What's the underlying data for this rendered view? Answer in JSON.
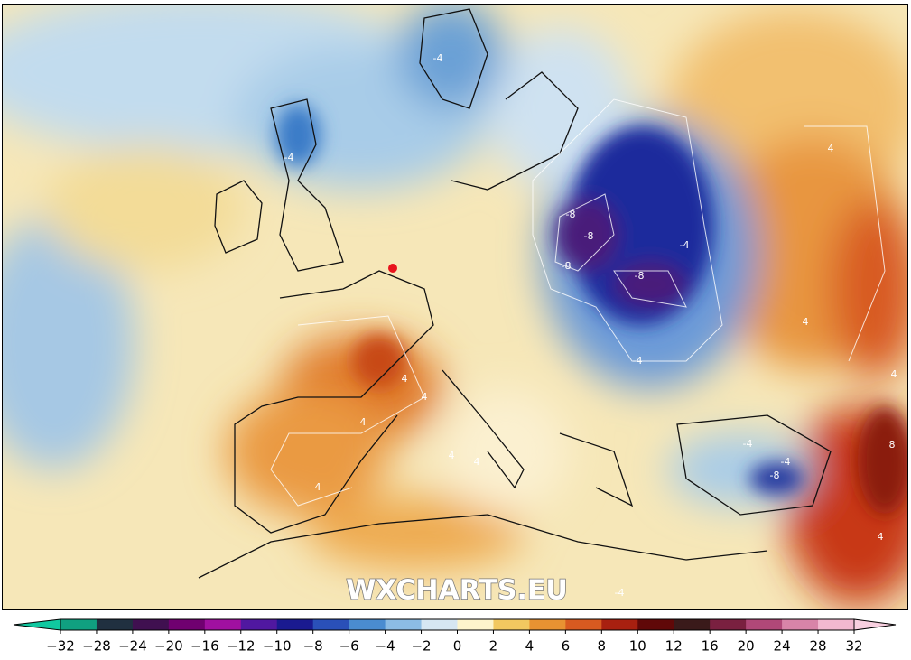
{
  "map": {
    "watermark": "WXCHARTS.EU",
    "contour_labels": [
      "-4",
      "-4",
      "-8",
      "-8",
      "-8",
      "-8",
      "-4",
      "-4",
      "4",
      "4",
      "4",
      "4",
      "4",
      "4",
      "-4",
      "-8",
      "-4",
      "8",
      "-4",
      "4",
      "4",
      "4",
      "4"
    ],
    "marker_color": "#e8141c"
  },
  "colorbar": {
    "ticks": [
      {
        "value": -32,
        "label": "−32"
      },
      {
        "value": -28,
        "label": "−28"
      },
      {
        "value": -24,
        "label": "−24"
      },
      {
        "value": -20,
        "label": "−20"
      },
      {
        "value": -16,
        "label": "−16"
      },
      {
        "value": -12,
        "label": "−12"
      },
      {
        "value": -10,
        "label": "−10"
      },
      {
        "value": -8,
        "label": "−8"
      },
      {
        "value": -6,
        "label": "−6"
      },
      {
        "value": -4,
        "label": "−4"
      },
      {
        "value": -2,
        "label": "−2"
      },
      0,
      2,
      4,
      6,
      8,
      10,
      12,
      16,
      20,
      24,
      28,
      32
    ],
    "colors": [
      "#10a080",
      "#203040",
      "#401050",
      "#700070",
      "#a010a0",
      "#5018a0",
      "#1a1a90",
      "#2a50b8",
      "#4a8cd0",
      "#8cbce4",
      "#d6e6f2",
      "#fdf4cc",
      "#f2c860",
      "#e89232",
      "#d85a20",
      "#a82010",
      "#600808",
      "#3a1a1a",
      "#7a2040",
      "#b04878",
      "#d884a8",
      "#f2b8d0"
    ],
    "under_color": "#10c8a0",
    "over_color": "#f8d0e0"
  }
}
